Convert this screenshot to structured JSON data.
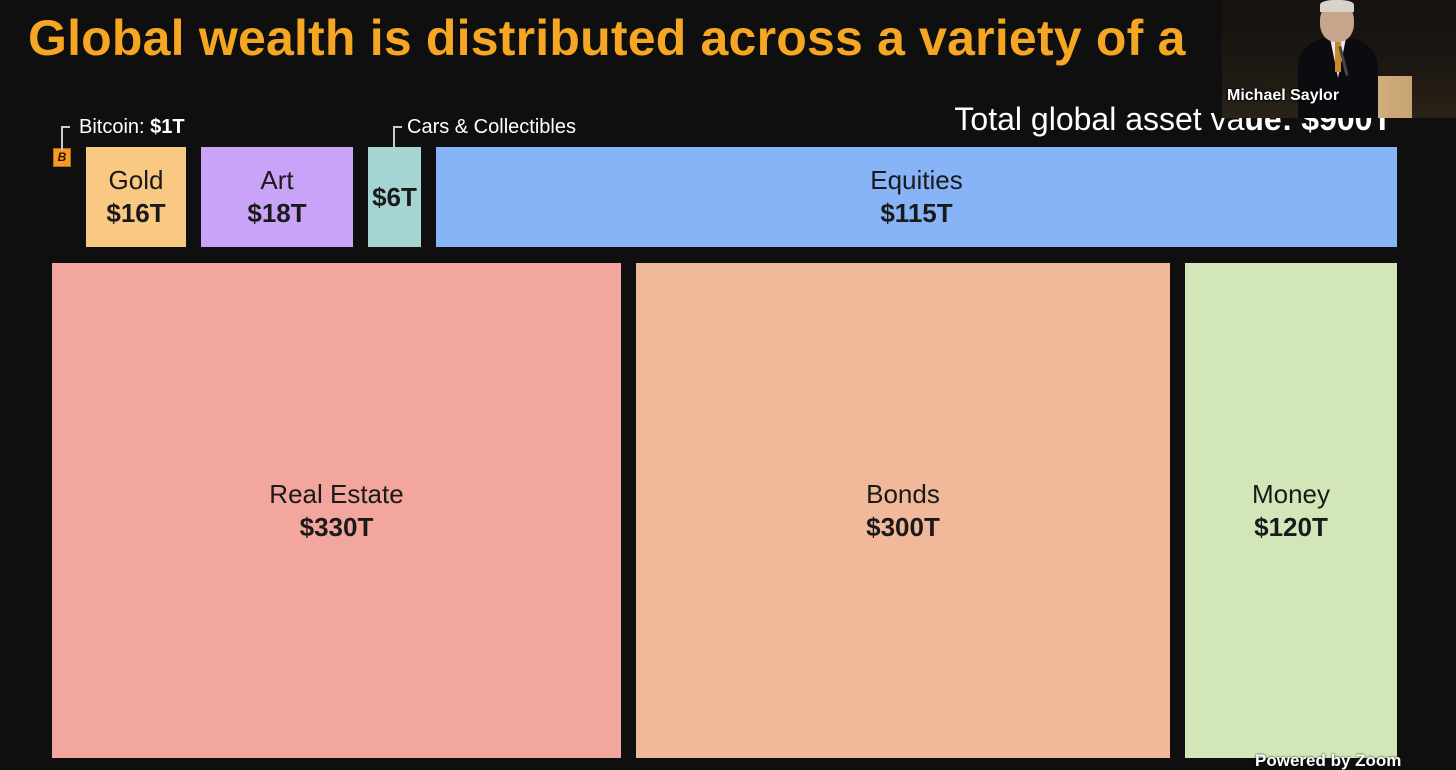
{
  "slide": {
    "title": "Global wealth is distributed across a variety of a",
    "total_label": "Total global asset va",
    "total_value": "ue: $900T"
  },
  "callouts": {
    "bitcoin_label": "Bitcoin: ",
    "bitcoin_value": "$1T",
    "bitcoin_icon": "bitcoin-icon",
    "cars_label": "Cars & Collectibles"
  },
  "chart_data": {
    "type": "treemap",
    "title": "Global wealth is distributed across a variety of a",
    "unit": "T USD",
    "items": [
      {
        "name": "Bitcoin",
        "label": "$1T",
        "value": 1,
        "color": "#f59a23"
      },
      {
        "name": "Gold",
        "label": "$16T",
        "value": 16,
        "color": "#f9c882"
      },
      {
        "name": "Art",
        "label": "$18T",
        "value": 18,
        "color": "#c9a3f7"
      },
      {
        "name": "",
        "label": "$6T",
        "value": 6,
        "color": "#a4d5d2"
      },
      {
        "name": "Equities",
        "label": "$115T",
        "value": 115,
        "color": "#86b4f7"
      },
      {
        "name": "Real Estate",
        "label": "$330T",
        "value": 330,
        "color": "#f3a69e"
      },
      {
        "name": "Bonds",
        "label": "$300T",
        "value": 300,
        "color": "#f2b89a"
      },
      {
        "name": "Money",
        "label": "$120T",
        "value": 120,
        "color": "#d3e6b8"
      }
    ]
  },
  "video": {
    "speaker_name": "Michael Saylor",
    "powered_by": "Powered by Zoom"
  }
}
